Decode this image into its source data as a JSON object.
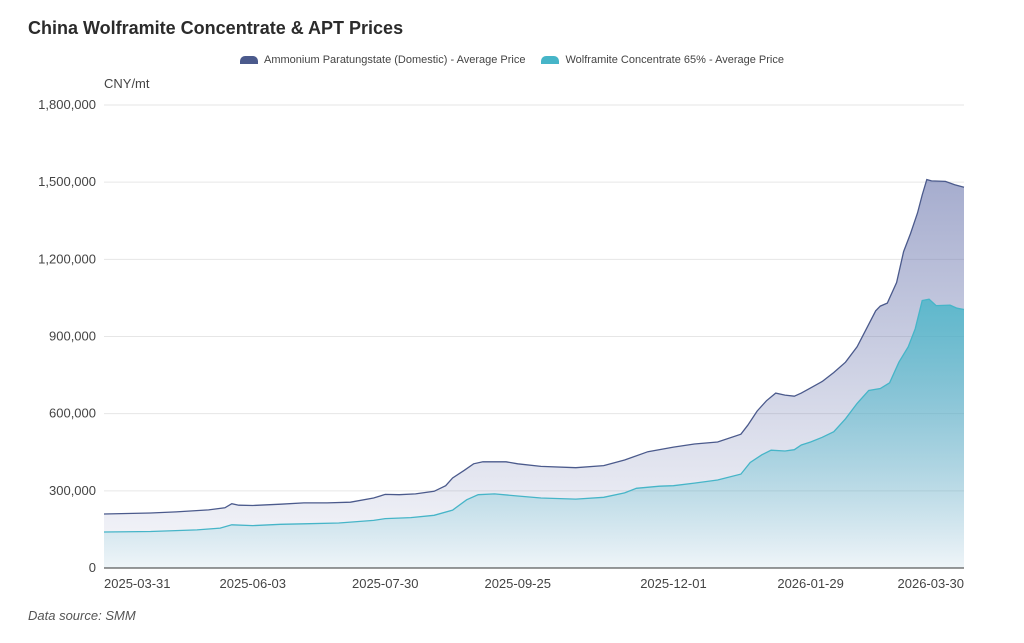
{
  "chart_data": {
    "type": "area",
    "title": "China Wolframite Concentrate & APT Prices",
    "ylabel": "CNY/mt",
    "ylim": [
      0,
      1800000
    ],
    "yticks": [
      "0",
      "300,000",
      "600,000",
      "900,000",
      "1,200,000",
      "1,500,000",
      "1,800,000"
    ],
    "ytick_values": [
      0,
      300000,
      600000,
      900000,
      1200000,
      1500000,
      1800000
    ],
    "xticks": [
      "2025-03-31",
      "2025-06-03",
      "2025-07-30",
      "2025-09-25",
      "2025-12-01",
      "2026-01-29",
      "2026-03-30"
    ],
    "grid": true,
    "legend_position": "top-center",
    "source": "Data source: SMM",
    "series": [
      {
        "name": "Ammonium Paratungstate (Domestic) - Average Price",
        "color": "#4b5a8c",
        "points": [
          [
            "2025-03-31",
            210000
          ],
          [
            "2025-04-10",
            212000
          ],
          [
            "2025-04-20",
            214000
          ],
          [
            "2025-05-01",
            218000
          ],
          [
            "2025-05-15",
            226000
          ],
          [
            "2025-05-22",
            234000
          ],
          [
            "2025-05-25",
            250000
          ],
          [
            "2025-05-28",
            244000
          ],
          [
            "2025-06-03",
            243000
          ],
          [
            "2025-06-15",
            248000
          ],
          [
            "2025-06-25",
            253000
          ],
          [
            "2025-07-05",
            253000
          ],
          [
            "2025-07-15",
            256000
          ],
          [
            "2025-07-25",
            272000
          ],
          [
            "2025-07-30",
            286000
          ],
          [
            "2025-08-05",
            285000
          ],
          [
            "2025-08-12",
            288000
          ],
          [
            "2025-08-20",
            298000
          ],
          [
            "2025-08-25",
            320000
          ],
          [
            "2025-08-28",
            350000
          ],
          [
            "2025-09-02",
            380000
          ],
          [
            "2025-09-06",
            405000
          ],
          [
            "2025-09-10",
            413000
          ],
          [
            "2025-09-20",
            413000
          ],
          [
            "2025-09-25",
            405000
          ],
          [
            "2025-10-05",
            395000
          ],
          [
            "2025-10-20",
            390000
          ],
          [
            "2025-11-01",
            398000
          ],
          [
            "2025-11-10",
            420000
          ],
          [
            "2025-11-20",
            452000
          ],
          [
            "2025-12-01",
            470000
          ],
          [
            "2025-12-10",
            482000
          ],
          [
            "2025-12-20",
            490000
          ],
          [
            "2025-12-30",
            520000
          ],
          [
            "2026-01-02",
            555000
          ],
          [
            "2026-01-06",
            610000
          ],
          [
            "2026-01-10",
            650000
          ],
          [
            "2026-01-14",
            680000
          ],
          [
            "2026-01-18",
            672000
          ],
          [
            "2026-01-22",
            668000
          ],
          [
            "2026-01-25",
            680000
          ],
          [
            "2026-01-29",
            700000
          ],
          [
            "2026-02-03",
            725000
          ],
          [
            "2026-02-08",
            760000
          ],
          [
            "2026-02-13",
            800000
          ],
          [
            "2026-02-18",
            860000
          ],
          [
            "2026-02-22",
            930000
          ],
          [
            "2026-02-26",
            1000000
          ],
          [
            "2026-02-28",
            1018000
          ],
          [
            "2026-03-03",
            1030000
          ],
          [
            "2026-03-07",
            1110000
          ],
          [
            "2026-03-10",
            1230000
          ],
          [
            "2026-03-13",
            1300000
          ],
          [
            "2026-03-16",
            1380000
          ],
          [
            "2026-03-18",
            1450000
          ],
          [
            "2026-03-20",
            1510000
          ],
          [
            "2026-03-22",
            1505000
          ],
          [
            "2026-03-28",
            1503000
          ],
          [
            "2026-04-01",
            1490000
          ],
          [
            "2026-04-05",
            1480000
          ]
        ]
      },
      {
        "name": "Wolframite Concentrate 65% - Average Price",
        "color": "#46b5c8",
        "points": [
          [
            "2025-03-31",
            140000
          ],
          [
            "2025-04-20",
            142000
          ],
          [
            "2025-05-10",
            148000
          ],
          [
            "2025-05-20",
            155000
          ],
          [
            "2025-05-25",
            168000
          ],
          [
            "2025-06-03",
            165000
          ],
          [
            "2025-06-15",
            170000
          ],
          [
            "2025-06-25",
            172000
          ],
          [
            "2025-07-10",
            175000
          ],
          [
            "2025-07-25",
            185000
          ],
          [
            "2025-07-30",
            192000
          ],
          [
            "2025-08-10",
            196000
          ],
          [
            "2025-08-20",
            205000
          ],
          [
            "2025-08-28",
            225000
          ],
          [
            "2025-09-03",
            265000
          ],
          [
            "2025-09-08",
            285000
          ],
          [
            "2025-09-15",
            288000
          ],
          [
            "2025-09-25",
            280000
          ],
          [
            "2025-10-05",
            272000
          ],
          [
            "2025-10-20",
            268000
          ],
          [
            "2025-11-01",
            275000
          ],
          [
            "2025-11-10",
            292000
          ],
          [
            "2025-11-15",
            310000
          ],
          [
            "2025-11-25",
            318000
          ],
          [
            "2025-12-01",
            320000
          ],
          [
            "2025-12-10",
            330000
          ],
          [
            "2025-12-20",
            342000
          ],
          [
            "2025-12-30",
            365000
          ],
          [
            "2026-01-03",
            410000
          ],
          [
            "2026-01-08",
            440000
          ],
          [
            "2026-01-12",
            458000
          ],
          [
            "2026-01-18",
            455000
          ],
          [
            "2026-01-22",
            460000
          ],
          [
            "2026-01-25",
            478000
          ],
          [
            "2026-01-29",
            490000
          ],
          [
            "2026-02-03",
            508000
          ],
          [
            "2026-02-08",
            530000
          ],
          [
            "2026-02-13",
            580000
          ],
          [
            "2026-02-18",
            640000
          ],
          [
            "2026-02-23",
            690000
          ],
          [
            "2026-02-28",
            698000
          ],
          [
            "2026-03-04",
            720000
          ],
          [
            "2026-03-08",
            800000
          ],
          [
            "2026-03-12",
            860000
          ],
          [
            "2026-03-15",
            930000
          ],
          [
            "2026-03-18",
            1040000
          ],
          [
            "2026-03-21",
            1045000
          ],
          [
            "2026-03-24",
            1020000
          ],
          [
            "2026-03-30",
            1022000
          ],
          [
            "2026-04-02",
            1010000
          ],
          [
            "2026-04-05",
            1005000
          ]
        ]
      }
    ]
  }
}
